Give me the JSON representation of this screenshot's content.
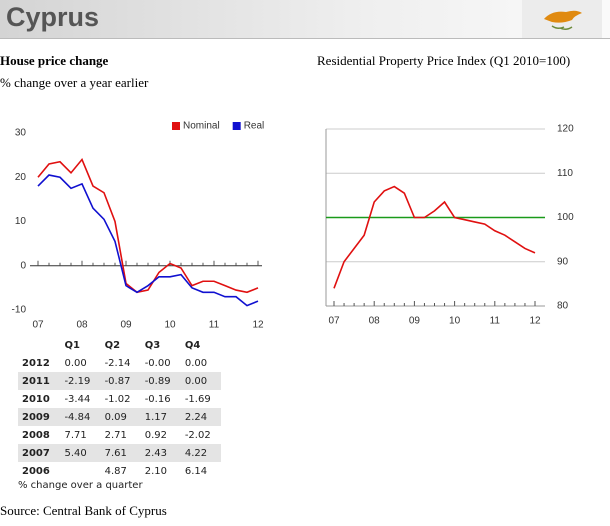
{
  "header": {
    "title": "Cyprus"
  },
  "chart_data": [
    {
      "type": "line",
      "title": "House price change",
      "subtitle": "% change over a year earlier",
      "categories": [
        "07",
        null,
        null,
        null,
        "08",
        null,
        null,
        null,
        "09",
        null,
        null,
        null,
        "10",
        null,
        null,
        null,
        "11",
        null,
        null,
        null,
        "12"
      ],
      "series": [
        {
          "name": "Nominal",
          "color": "#e01010",
          "values": [
            20,
            23,
            23.5,
            21,
            24,
            18,
            16.5,
            10,
            -4,
            -6,
            -5.5,
            -1.5,
            0.5,
            -0.5,
            -4.5,
            -3.5,
            -3.5,
            -4.5,
            -5.5,
            -6,
            -5
          ]
        },
        {
          "name": "Real",
          "color": "#1010d0",
          "values": [
            18,
            20.5,
            20,
            17.5,
            18.5,
            13,
            10.5,
            5.5,
            -4.5,
            -6,
            -4.5,
            -2.5,
            -2.5,
            -2,
            -5,
            -6,
            -6,
            -7,
            -7,
            -9,
            -8
          ]
        }
      ],
      "ylim": [
        -10,
        30
      ],
      "yticks": [
        -10,
        0,
        10,
        20,
        30
      ],
      "y_axis_side": "left",
      "grid": false,
      "legend": "top-right"
    },
    {
      "type": "line",
      "title": "Residential Property Price Index (Q1 2010=100)",
      "categories": [
        "07",
        null,
        null,
        null,
        "08",
        null,
        null,
        null,
        "09",
        null,
        null,
        null,
        "10",
        null,
        null,
        null,
        "11",
        null,
        null,
        null,
        "12"
      ],
      "series": [
        {
          "color": "#e01010",
          "values": [
            84,
            90,
            93,
            96,
            103.5,
            106,
            107,
            105.5,
            100,
            100,
            101.5,
            103.5,
            100,
            99.5,
            99,
            98.5,
            97,
            96,
            94.5,
            93,
            92
          ]
        }
      ],
      "reference_line": {
        "value": 100,
        "color": "#1a9a1a"
      },
      "ylim": [
        80,
        120
      ],
      "yticks": [
        80,
        90,
        100,
        110,
        120
      ],
      "y_axis_side": "right",
      "grid": true
    }
  ],
  "table": {
    "header": [
      "Q1",
      "Q2",
      "Q3",
      "Q4"
    ],
    "rows": [
      [
        "2012",
        "0.00",
        "-2.14",
        "-0.00",
        "0.00"
      ],
      [
        "2011",
        "-2.19",
        "-0.87",
        "-0.89",
        "0.00"
      ],
      [
        "2010",
        "-3.44",
        "-1.02",
        "-0.16",
        "-1.69"
      ],
      [
        "2009",
        "-4.84",
        "0.09",
        "1.17",
        "2.24"
      ],
      [
        "2008",
        "7.71",
        "2.71",
        "0.92",
        "-2.02"
      ],
      [
        "2007",
        "5.40",
        "7.61",
        "2.43",
        "4.22"
      ],
      [
        "2006",
        null,
        "4.87",
        "2.10",
        "6.14"
      ]
    ],
    "note": "% change over a quarter"
  },
  "source": "Source: Central Bank of Cyprus"
}
